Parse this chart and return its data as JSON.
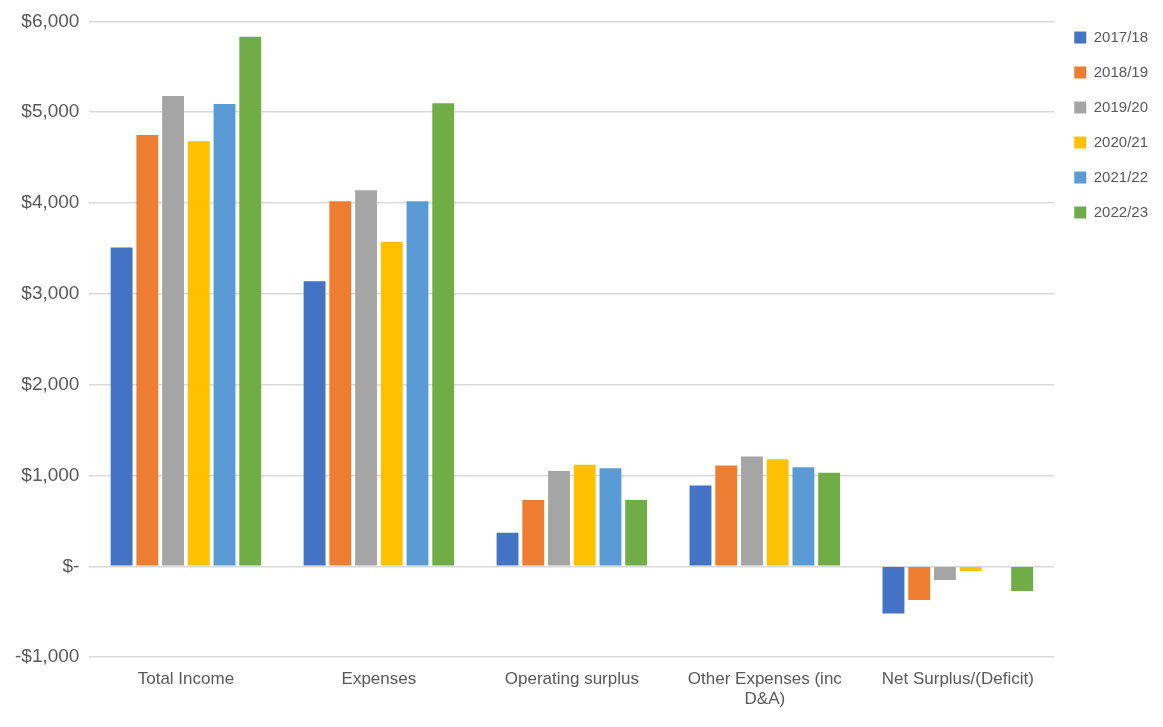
{
  "chart_data": {
    "type": "bar",
    "categories": [
      "Total Income",
      "Expenses",
      "Operating surplus",
      "Other Expenses (inc D&A)",
      "Net Surplus/(Deficit)"
    ],
    "series": [
      {
        "name": "2017/18",
        "color": "#4472c4",
        "values": [
          3510,
          3140,
          370,
          890,
          -520
        ]
      },
      {
        "name": "2018/19",
        "color": "#ed7d31",
        "values": [
          4750,
          4020,
          730,
          1110,
          -370
        ]
      },
      {
        "name": "2019/20",
        "color": "#a5a5a5",
        "values": [
          5180,
          4140,
          1050,
          1210,
          -150
        ]
      },
      {
        "name": "2020/21",
        "color": "#ffc000",
        "values": [
          4680,
          3570,
          1120,
          1180,
          -50
        ]
      },
      {
        "name": "2021/22",
        "color": "#5b9bd5",
        "values": [
          5090,
          4020,
          1080,
          1090,
          0
        ]
      },
      {
        "name": "2022/23",
        "color": "#70ad47",
        "values": [
          5830,
          5100,
          730,
          1030,
          -270
        ]
      }
    ],
    "ylim": [
      -1000,
      6000
    ],
    "yticks": [
      {
        "value": -1000,
        "label": "-$1,000"
      },
      {
        "value": 0,
        "label": "$-"
      },
      {
        "value": 1000,
        "label": "$1,000"
      },
      {
        "value": 2000,
        "label": "$2,000"
      },
      {
        "value": 3000,
        "label": "$3,000"
      },
      {
        "value": 4000,
        "label": "$4,000"
      },
      {
        "value": 5000,
        "label": "$5,000"
      },
      {
        "value": 6000,
        "label": "$6,000"
      }
    ],
    "grid": "y",
    "legend": "top right"
  }
}
